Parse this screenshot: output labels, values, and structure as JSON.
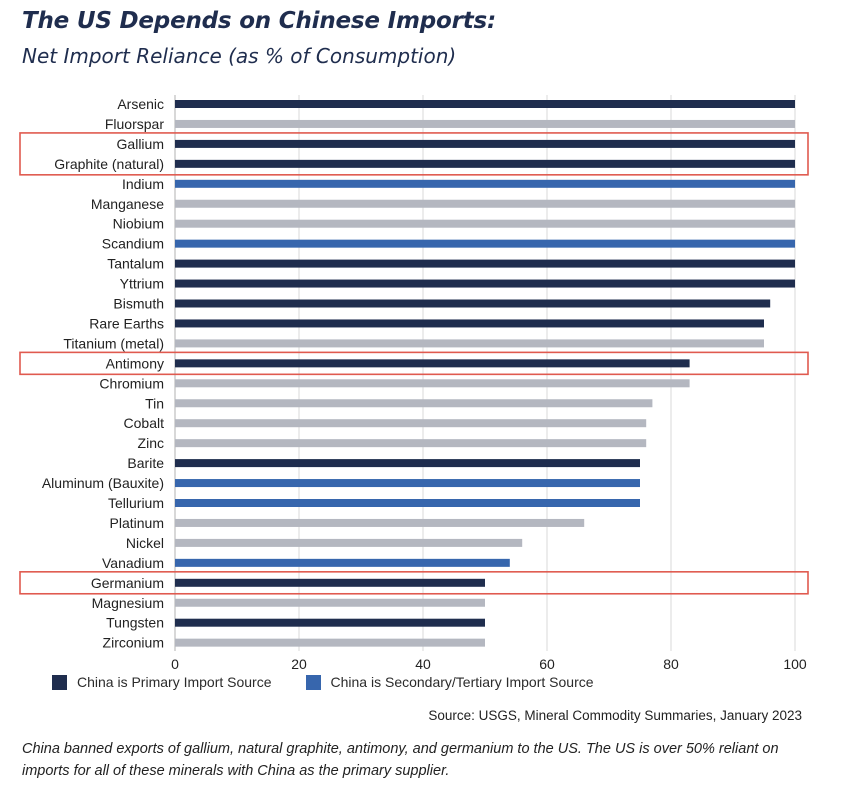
{
  "title": "The US Depends on Chinese Imports:",
  "subtitle": "Net Import Reliance (as % of Consumption)",
  "colors": {
    "primary": "#1f2d4e",
    "secondary": "#3766ad",
    "other": "#b4b7c0",
    "highlight": "#e05a4f",
    "grid": "#d9d9d9"
  },
  "chart_data": {
    "type": "bar",
    "orientation": "horizontal",
    "xlim": [
      0,
      100
    ],
    "xticks": [
      0,
      20,
      40,
      60,
      80,
      100
    ],
    "grid": "vertical",
    "categories": [
      "Arsenic",
      "Fluorspar",
      "Gallium",
      "Graphite (natural)",
      "Indium",
      "Manganese",
      "Niobium",
      "Scandium",
      "Tantalum",
      "Yttrium",
      "Bismuth",
      "Rare Earths",
      "Titanium (metal)",
      "Antimony",
      "Chromium",
      "Tin",
      "Cobalt",
      "Zinc",
      "Barite",
      "Aluminum (Bauxite)",
      "Tellurium",
      "Platinum",
      "Nickel",
      "Vanadium",
      "Germanium",
      "Magnesium",
      "Tungsten",
      "Zirconium"
    ],
    "values": [
      100,
      100,
      100,
      100,
      100,
      100,
      100,
      100,
      100,
      100,
      96,
      95,
      95,
      83,
      83,
      77,
      76,
      76,
      75,
      75,
      75,
      66,
      56,
      54,
      50,
      50,
      50,
      50
    ],
    "groups": [
      "primary",
      "other",
      "primary",
      "primary",
      "secondary",
      "other",
      "other",
      "secondary",
      "primary",
      "primary",
      "primary",
      "primary",
      "other",
      "primary",
      "other",
      "other",
      "other",
      "other",
      "primary",
      "secondary",
      "secondary",
      "other",
      "other",
      "secondary",
      "primary",
      "other",
      "primary",
      "other"
    ],
    "highlighted": [
      "Gallium",
      "Graphite (natural)",
      "Antimony",
      "Germanium"
    ]
  },
  "legend": [
    {
      "label": "China is Primary Import Source",
      "color": "#1f2d4e"
    },
    {
      "label": "China is Secondary/Tertiary Import Source",
      "color": "#3766ad"
    }
  ],
  "source": "Source: USGS, Mineral Commodity Summaries, January 2023",
  "caption": "China banned exports of gallium, natural graphite, antimony, and germanium to the US. The US is over 50% reliant on imports for all of these minerals with China as the primary supplier."
}
